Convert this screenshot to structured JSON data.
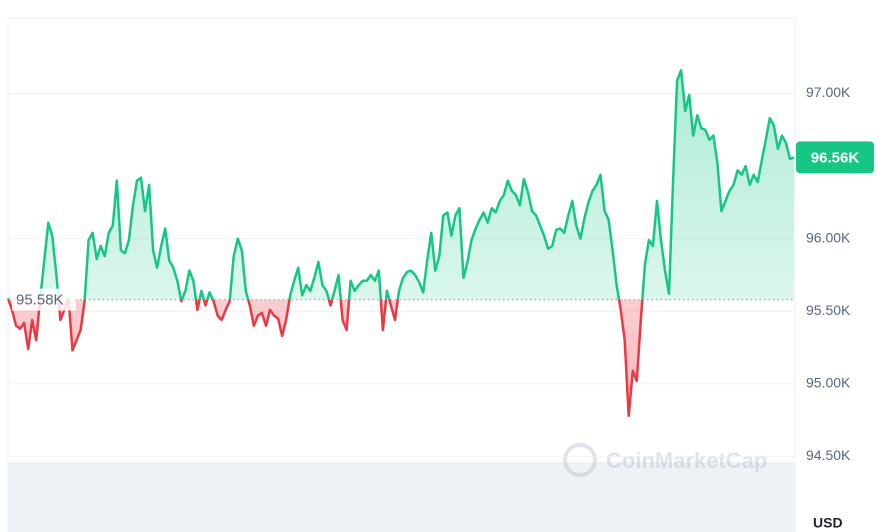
{
  "chart_data": {
    "type": "line",
    "values": [
      95590,
      95510,
      95400,
      95380,
      95420,
      95240,
      95440,
      95300,
      95590,
      95850,
      96110,
      96020,
      95750,
      95440,
      95510,
      95590,
      95230,
      95300,
      95370,
      95570,
      95990,
      96040,
      95860,
      95950,
      95880,
      96040,
      96090,
      96400,
      95920,
      95900,
      95990,
      96230,
      96400,
      96420,
      96190,
      96370,
      95920,
      95800,
      95950,
      96070,
      95850,
      95800,
      95710,
      95570,
      95640,
      95780,
      95710,
      95510,
      95640,
      95540,
      95630,
      95570,
      95470,
      95440,
      95510,
      95570,
      95880,
      96000,
      95920,
      95640,
      95540,
      95400,
      95470,
      95490,
      95400,
      95510,
      95470,
      95450,
      95330,
      95440,
      95610,
      95710,
      95800,
      95610,
      95680,
      95640,
      95730,
      95840,
      95680,
      95640,
      95540,
      95640,
      95750,
      95440,
      95370,
      95710,
      95640,
      95680,
      95710,
      95710,
      95750,
      95710,
      95780,
      95370,
      95640,
      95540,
      95440,
      95640,
      95730,
      95770,
      95780,
      95750,
      95700,
      95630,
      95850,
      96040,
      95780,
      95880,
      96160,
      96180,
      96020,
      96160,
      96210,
      95730,
      95840,
      95990,
      96070,
      96130,
      96180,
      96110,
      96210,
      96180,
      96260,
      96300,
      96400,
      96330,
      96300,
      96230,
      96410,
      96320,
      96190,
      96160,
      96090,
      96020,
      95930,
      95950,
      96060,
      96070,
      96040,
      96160,
      96260,
      96090,
      96000,
      96140,
      96250,
      96330,
      96370,
      96440,
      96190,
      96130,
      95920,
      95680,
      95510,
      95300,
      94780,
      95090,
      95020,
      95440,
      95820,
      95990,
      95950,
      96260,
      95990,
      95780,
      95620,
      96400,
      97090,
      97160,
      96880,
      96990,
      96710,
      96850,
      96760,
      96750,
      96680,
      96710,
      96520,
      96190,
      96260,
      96330,
      96370,
      96470,
      96440,
      96500,
      96370,
      96440,
      96390,
      96540,
      96680,
      96830,
      96780,
      96620,
      96710,
      96660,
      96550,
      96560
    ],
    "up_color": "#16c784",
    "down_color": "#ea3943",
    "baseline": 95580,
    "baseline_label": "95.58K",
    "price_label": "96.56K",
    "ylim": [
      94000,
      97520
    ],
    "yticks": [
      {
        "value": 94500,
        "label": "94.50K"
      },
      {
        "value": 95000,
        "label": "95.00K"
      },
      {
        "value": 95500,
        "label": "95.50K"
      },
      {
        "value": 96000,
        "label": "96.00K"
      },
      {
        "value": 97000,
        "label": "97.00K"
      }
    ],
    "grid": true,
    "unit": "USD",
    "watermark": "CoinMarketCap"
  }
}
